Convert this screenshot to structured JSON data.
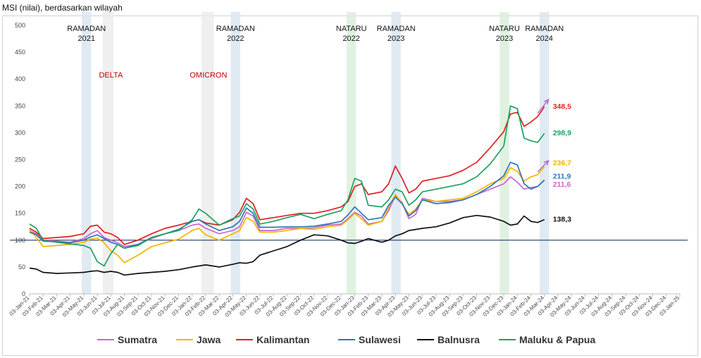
{
  "chart_data": {
    "type": "line",
    "title": "MSI (nilai), berdasarkan wilayah",
    "ylim": [
      0,
      500
    ],
    "yticks": [
      0,
      50,
      100,
      150,
      200,
      250,
      300,
      350,
      400,
      450,
      500
    ],
    "reference_line": 100,
    "x_tick_labels": [
      "03-Jan-21",
      "03-Feb-21",
      "03-Mar-21",
      "03-Apr-21",
      "03-May-21",
      "03-Jun-21",
      "03-Jul-21",
      "03-Aug-21",
      "03-Sep-21",
      "03-Oct-21",
      "03-Nov-21",
      "03-Dec-21",
      "03-Jan-22",
      "03-Feb-22",
      "03-Mar-22",
      "03-Apr-22",
      "03-May-22",
      "03-Jun-22",
      "03-Jul-22",
      "03-Aug-22",
      "03-Sep-22",
      "03-Oct-22",
      "03-Nov-22",
      "03-Dec-22",
      "03-Jan-23",
      "03-Feb-23",
      "03-Mar-23",
      "03-Apr-23",
      "03-May-23",
      "03-Jun-23",
      "03-Jul-23",
      "03-Aug-23",
      "03-Sep-23",
      "03-Oct-23",
      "03-Nov-23",
      "03-Dec-23",
      "03-Jan-24",
      "03-Feb-24",
      "03-Mar-24",
      "03-Apr-24",
      "03-May-24",
      "03-Jun-24",
      "03-Jul-24",
      "03-Aug-24",
      "03-Sep-24",
      "03-Oct-24",
      "03-Nov-24",
      "03-Dec-24",
      "03-Jan-25"
    ],
    "bands": [
      {
        "type": "ramadan",
        "start": 3.85,
        "end": 4.55
      },
      {
        "type": "ramadan",
        "start": 14.85,
        "end": 15.55
      },
      {
        "type": "ramadan",
        "start": 26.7,
        "end": 27.4
      },
      {
        "type": "ramadan",
        "start": 37.65,
        "end": 38.35
      },
      {
        "type": "nataru",
        "start": 23.4,
        "end": 24.1
      },
      {
        "type": "nataru",
        "start": 34.7,
        "end": 35.4
      },
      {
        "type": "covid",
        "start": 5.4,
        "end": 6.2
      },
      {
        "type": "covid",
        "start": 12.7,
        "end": 13.6
      }
    ],
    "events": [
      {
        "text": "RAMADAN",
        "text2": "2021",
        "x": 4.2,
        "color": "#111111"
      },
      {
        "text": "DELTA",
        "text2": "",
        "x": 6.0,
        "color": "#c00000"
      },
      {
        "text": "OMICRON",
        "text2": "",
        "x": 13.2,
        "color": "#c00000"
      },
      {
        "text": "RAMADAN",
        "text2": "2022",
        "x": 15.2,
        "color": "#111111"
      },
      {
        "text": "NATARU",
        "text2": "2022",
        "x": 23.75,
        "color": "#111111"
      },
      {
        "text": "RAMADAN",
        "text2": "2023",
        "x": 27.05,
        "color": "#111111"
      },
      {
        "text": "NATARU",
        "text2": "2023",
        "x": 35.05,
        "color": "#111111"
      },
      {
        "text": "RAMADAN",
        "text2": "2024",
        "x": 38.0,
        "color": "#111111"
      }
    ],
    "series": [
      {
        "name": "Sumatra",
        "color": "#cc66cc",
        "end_label": "211,6",
        "x": [
          0,
          0.5,
          1,
          2,
          3,
          4,
          4.5,
          5,
          5.5,
          6,
          6.5,
          7,
          8,
          9,
          10,
          11,
          12,
          12.5,
          13,
          14,
          15,
          15.5,
          16,
          16.5,
          17,
          18,
          19,
          20,
          21,
          22,
          23,
          23.5,
          24,
          24.5,
          25,
          26,
          26.5,
          27,
          27.5,
          28,
          28.5,
          29,
          30,
          31,
          32,
          33,
          34,
          35,
          35.5,
          36,
          36.5,
          37,
          37.5,
          38
        ],
        "y": [
          118,
          112,
          100,
          98,
          96,
          103,
          112,
          118,
          105,
          100,
          95,
          88,
          92,
          103,
          112,
          118,
          128,
          130,
          122,
          112,
          118,
          125,
          152,
          145,
          118,
          118,
          122,
          122,
          123,
          128,
          130,
          140,
          152,
          145,
          130,
          135,
          155,
          183,
          170,
          140,
          148,
          178,
          172,
          172,
          175,
          185,
          195,
          205,
          218,
          208,
          195,
          198,
          200,
          211.6
        ]
      },
      {
        "name": "Jawa",
        "color": "#f4b400",
        "end_label": "236,7",
        "x": [
          0,
          0.5,
          1,
          2,
          3,
          4,
          4.5,
          5,
          5.5,
          6,
          6.5,
          7,
          8,
          9,
          10,
          11,
          12,
          12.5,
          13,
          14,
          15,
          15.5,
          16,
          16.5,
          17,
          18,
          19,
          20,
          21,
          22,
          23,
          23.5,
          24,
          24.5,
          25,
          26,
          26.5,
          27,
          27.5,
          28,
          28.5,
          29,
          30,
          31,
          32,
          33,
          34,
          35,
          35.5,
          36,
          36.5,
          37,
          37.5,
          38
        ],
        "y": [
          120,
          105,
          88,
          90,
          92,
          96,
          102,
          104,
          95,
          80,
          72,
          58,
          72,
          88,
          95,
          102,
          118,
          122,
          110,
          100,
          112,
          118,
          142,
          135,
          115,
          115,
          118,
          122,
          120,
          125,
          128,
          138,
          150,
          140,
          128,
          135,
          160,
          185,
          168,
          148,
          158,
          175,
          172,
          175,
          178,
          190,
          205,
          215,
          235,
          228,
          210,
          218,
          222,
          236.7
        ]
      },
      {
        "name": "Kalimantan",
        "color": "#e02020",
        "end_label": "348,5",
        "x": [
          0,
          0.5,
          1,
          2,
          3,
          4,
          4.5,
          5,
          5.5,
          6,
          6.5,
          7,
          8,
          9,
          10,
          11,
          12,
          12.5,
          13,
          14,
          15,
          15.5,
          16,
          16.5,
          17,
          18,
          19,
          20,
          21,
          22,
          23,
          23.5,
          24,
          24.5,
          25,
          26,
          26.5,
          27,
          27.5,
          28,
          28.5,
          29,
          30,
          31,
          32,
          33,
          34,
          35,
          35.5,
          36,
          36.5,
          37,
          37.5,
          38
        ],
        "y": [
          122,
          115,
          103,
          105,
          107,
          112,
          126,
          128,
          115,
          112,
          105,
          92,
          100,
          112,
          122,
          128,
          135,
          138,
          132,
          128,
          138,
          152,
          178,
          168,
          138,
          142,
          146,
          150,
          150,
          155,
          162,
          172,
          200,
          205,
          185,
          190,
          205,
          238,
          215,
          188,
          195,
          210,
          215,
          220,
          230,
          245,
          272,
          302,
          335,
          338,
          312,
          320,
          330,
          348.5
        ]
      },
      {
        "name": "Sulawesi",
        "color": "#2e75b6",
        "end_label": "211,9",
        "x": [
          0,
          0.5,
          1,
          2,
          3,
          4,
          4.5,
          5,
          5.5,
          6,
          6.5,
          7,
          8,
          9,
          10,
          11,
          12,
          12.5,
          13,
          14,
          15,
          15.5,
          16,
          16.5,
          17,
          18,
          19,
          20,
          21,
          22,
          23,
          23.5,
          24,
          24.5,
          25,
          26,
          26.5,
          27,
          27.5,
          28,
          28.5,
          29,
          30,
          31,
          32,
          33,
          34,
          35,
          35.5,
          36,
          36.5,
          37,
          37.5,
          38
        ],
        "y": [
          115,
          110,
          98,
          97,
          95,
          100,
          106,
          110,
          103,
          96,
          92,
          85,
          92,
          105,
          112,
          120,
          135,
          138,
          130,
          118,
          125,
          135,
          160,
          150,
          124,
          124,
          125,
          125,
          126,
          130,
          135,
          147,
          162,
          150,
          138,
          142,
          165,
          180,
          168,
          145,
          155,
          175,
          168,
          170,
          175,
          185,
          200,
          220,
          245,
          240,
          205,
          195,
          200,
          211.9
        ]
      },
      {
        "name": "Balnusra",
        "color": "#111111",
        "end_label": "138,3",
        "x": [
          0,
          0.5,
          1,
          2,
          3,
          4,
          4.5,
          5,
          5.5,
          6,
          6.5,
          7,
          8,
          9,
          10,
          11,
          12,
          12.5,
          13,
          14,
          15,
          15.5,
          16,
          16.5,
          17,
          18,
          19,
          20,
          21,
          22,
          23,
          23.5,
          24,
          24.5,
          25,
          26,
          26.5,
          27,
          27.5,
          28,
          28.5,
          29,
          30,
          31,
          32,
          33,
          34,
          35,
          35.5,
          36,
          36.5,
          37,
          37.5,
          38
        ],
        "y": [
          48,
          46,
          40,
          38,
          39,
          40,
          42,
          43,
          40,
          42,
          40,
          35,
          38,
          40,
          42,
          45,
          50,
          52,
          54,
          50,
          55,
          58,
          57,
          60,
          72,
          80,
          88,
          100,
          110,
          108,
          100,
          95,
          94,
          98,
          103,
          96,
          100,
          108,
          112,
          118,
          120,
          122,
          125,
          132,
          142,
          146,
          143,
          135,
          128,
          130,
          145,
          135,
          133,
          138.3
        ]
      },
      {
        "name": "Maluku & Papua",
        "color": "#1aa260",
        "end_label": "298,9",
        "x": [
          0,
          0.5,
          1,
          2,
          3,
          4,
          4.5,
          5,
          5.5,
          6,
          6.5,
          7,
          8,
          9,
          10,
          11,
          12,
          12.5,
          13,
          14,
          15,
          15.5,
          16,
          16.5,
          17,
          18,
          19,
          20,
          21,
          22,
          23,
          23.5,
          24,
          24.5,
          25,
          26,
          26.5,
          27,
          27.5,
          28,
          28.5,
          29,
          30,
          31,
          32,
          33,
          34,
          35,
          35.5,
          36,
          36.5,
          37,
          37.5,
          38
        ],
        "y": [
          130,
          122,
          100,
          96,
          93,
          90,
          85,
          60,
          52,
          75,
          92,
          85,
          90,
          105,
          112,
          118,
          138,
          158,
          150,
          128,
          140,
          145,
          168,
          158,
          130,
          135,
          142,
          148,
          140,
          148,
          155,
          175,
          215,
          210,
          165,
          162,
          175,
          195,
          190,
          165,
          175,
          190,
          195,
          200,
          205,
          218,
          242,
          275,
          350,
          345,
          290,
          285,
          282,
          298.9
        ]
      }
    ],
    "arrows": [
      {
        "x0": 37.5,
        "y0": 336,
        "x1": 38.3,
        "y1": 362,
        "color": "#b070d0"
      },
      {
        "x0": 37.5,
        "y0": 227,
        "x1": 38.3,
        "y1": 248,
        "color": "#b070d0"
      }
    ]
  }
}
